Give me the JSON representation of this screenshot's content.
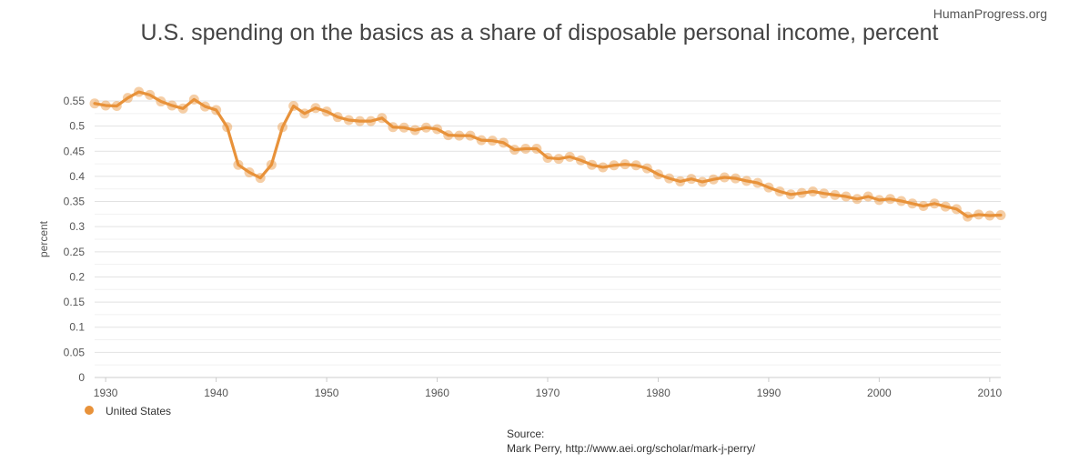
{
  "brand": "HumanProgress.org",
  "source": {
    "label": "Source:",
    "text": "Mark Perry, http://www.aei.org/scholar/mark-j-perry/"
  },
  "chart_data": {
    "type": "line",
    "title": "U.S. spending on the basics as a share of disposable personal income, percent",
    "xlabel": "",
    "ylabel": "percent",
    "xlim": [
      1929,
      2011
    ],
    "ylim": [
      0,
      0.55
    ],
    "yticks": [
      0,
      0.05,
      0.1,
      0.15,
      0.2,
      0.25,
      0.3,
      0.35,
      0.4,
      0.45,
      0.5,
      0.55
    ],
    "ytick_labels": [
      "0",
      "0.05",
      "0.1",
      "0.15",
      "0.2",
      "0.25",
      "0.3",
      "0.35",
      "0.4",
      "0.45",
      "0.5",
      "0.55"
    ],
    "xticks": [
      1930,
      1940,
      1950,
      1960,
      1970,
      1980,
      1990,
      2000,
      2010
    ],
    "xtick_labels": [
      "1930",
      "1940",
      "1950",
      "1960",
      "1970",
      "1980",
      "1990",
      "2000",
      "2010"
    ],
    "grid": true,
    "legend": "bottom-left",
    "color": "#e8923a",
    "series": [
      {
        "name": "United States",
        "x": [
          1929,
          1930,
          1931,
          1932,
          1933,
          1934,
          1935,
          1936,
          1937,
          1938,
          1939,
          1940,
          1941,
          1942,
          1943,
          1944,
          1945,
          1946,
          1947,
          1948,
          1949,
          1950,
          1951,
          1952,
          1953,
          1954,
          1955,
          1956,
          1957,
          1958,
          1959,
          1960,
          1961,
          1962,
          1963,
          1964,
          1965,
          1966,
          1967,
          1968,
          1969,
          1970,
          1971,
          1972,
          1973,
          1974,
          1975,
          1976,
          1977,
          1978,
          1979,
          1980,
          1981,
          1982,
          1983,
          1984,
          1985,
          1986,
          1987,
          1988,
          1989,
          1990,
          1991,
          1992,
          1993,
          1994,
          1995,
          1996,
          1997,
          1998,
          1999,
          2000,
          2001,
          2002,
          2003,
          2004,
          2005,
          2006,
          2007,
          2008,
          2009,
          2010,
          2011
        ],
        "values": [
          0.545,
          0.541,
          0.54,
          0.556,
          0.568,
          0.562,
          0.549,
          0.541,
          0.535,
          0.553,
          0.539,
          0.532,
          0.498,
          0.423,
          0.408,
          0.397,
          0.423,
          0.498,
          0.54,
          0.525,
          0.536,
          0.529,
          0.518,
          0.512,
          0.51,
          0.51,
          0.516,
          0.498,
          0.497,
          0.492,
          0.497,
          0.494,
          0.482,
          0.481,
          0.481,
          0.472,
          0.471,
          0.467,
          0.453,
          0.455,
          0.455,
          0.437,
          0.435,
          0.439,
          0.432,
          0.423,
          0.418,
          0.422,
          0.424,
          0.422,
          0.416,
          0.404,
          0.396,
          0.39,
          0.395,
          0.389,
          0.394,
          0.398,
          0.396,
          0.391,
          0.387,
          0.378,
          0.37,
          0.364,
          0.367,
          0.37,
          0.366,
          0.363,
          0.36,
          0.355,
          0.36,
          0.353,
          0.355,
          0.351,
          0.346,
          0.341,
          0.346,
          0.34,
          0.335,
          0.32,
          0.324,
          0.322,
          0.323
        ]
      }
    ]
  }
}
